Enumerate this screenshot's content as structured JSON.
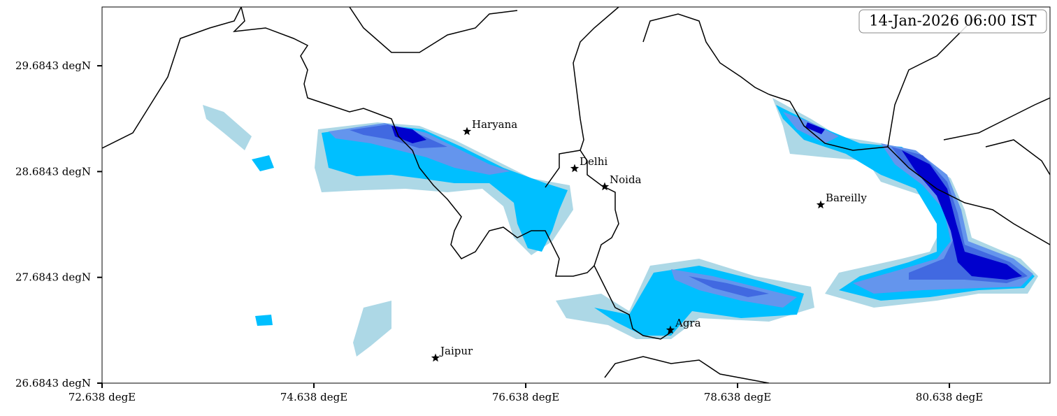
{
  "map": {
    "timestamp": "14-Jan-2026 06:00 IST",
    "xlim": [
      72.638,
      81.588
    ],
    "ylim": [
      26.6843,
      30.24
    ],
    "xticks": [
      {
        "value": 72.638,
        "label": "72.638 degE"
      },
      {
        "value": 74.638,
        "label": "74.638 degE"
      },
      {
        "value": 76.638,
        "label": "76.638 degE"
      },
      {
        "value": 78.638,
        "label": "78.638 degE"
      },
      {
        "value": 80.638,
        "label": "80.638 degE"
      }
    ],
    "yticks": [
      {
        "value": 26.6843,
        "label": "26.6843 degN"
      },
      {
        "value": 27.6843,
        "label": "27.6843 degN"
      },
      {
        "value": 28.6843,
        "label": "28.6843 degN"
      },
      {
        "value": 29.6843,
        "label": "29.6843 degN"
      }
    ],
    "cities": [
      "Haryana",
      "Delhi",
      "Noida",
      "Bareilly",
      "Agra",
      "Jaipur"
    ]
  }
}
